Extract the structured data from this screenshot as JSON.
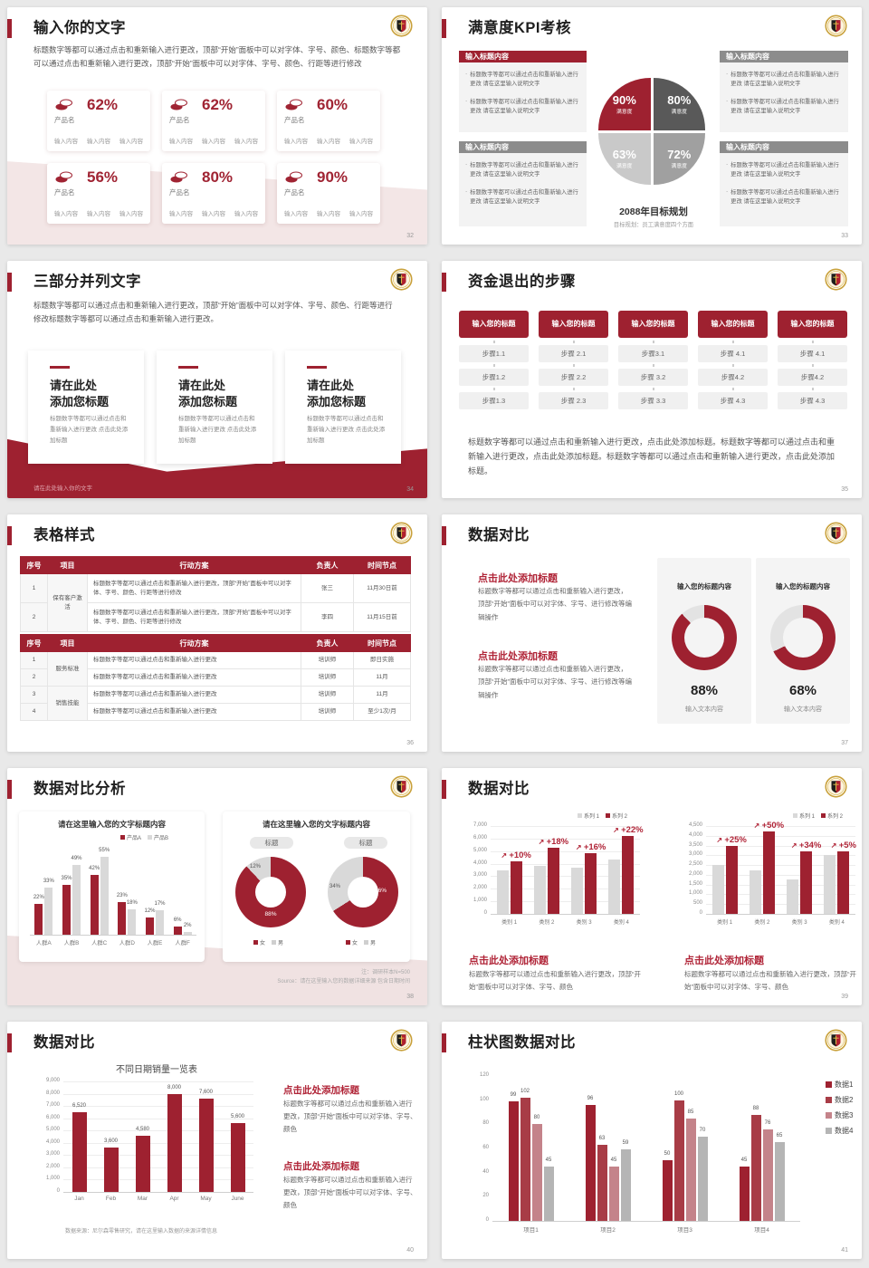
{
  "colors": {
    "red": "#9e2130",
    "red2": "#a83c46",
    "rose": "#c4838a",
    "heading_red": "#b02437",
    "gray_bar": "#d9d9d9",
    "gray_dark": "#595959",
    "gray_mid": "#a0a0a0",
    "gray_light": "#c9c9c9",
    "gray_header": "#8c8c8c",
    "legend_gray": "#b5b5b5"
  },
  "slides": [
    {
      "kind": "stats",
      "title": "输入你的文字",
      "page": "32",
      "body": "标题数字等都可以通过点击和重新输入进行更改，顶部“开始”面板中可以对字体、字号、颜色、标题数字等都可以通过点击和重新输入进行更改，顶部“开始”面板中可以对字体、字号、颜色、行距等进行修改",
      "cards": [
        {
          "pct": "62%",
          "product": "产品名",
          "items": [
            "输入内容",
            "输入内容",
            "输入内容"
          ]
        },
        {
          "pct": "62%",
          "product": "产品名",
          "items": [
            "输入内容",
            "输入内容",
            "输入内容"
          ]
        },
        {
          "pct": "60%",
          "product": "产品名",
          "items": [
            "输入内容",
            "输入内容",
            "输入内容"
          ]
        },
        {
          "pct": "56%",
          "product": "产品名",
          "items": [
            "输入内容",
            "输入内容",
            "输入内容"
          ]
        },
        {
          "pct": "80%",
          "product": "产品名",
          "items": [
            "输入内容",
            "输入内容",
            "输入内容"
          ]
        },
        {
          "pct": "90%",
          "product": "产品名",
          "items": [
            "输入内容",
            "输入内容",
            "输入内容"
          ]
        }
      ]
    },
    {
      "kind": "kpi",
      "title": "满意度KPI考核",
      "page": "33",
      "box_header": "输入标题内容",
      "bullet": "标题数字等都可以通过点击和重新输入进行更改 请在这里输入说明文字",
      "pie": [
        {
          "pct": "90",
          "label": "满意度"
        },
        {
          "pct": "80",
          "label": "满意度"
        },
        {
          "pct": "63",
          "label": "满意度"
        },
        {
          "pct": "72",
          "label": "满意度"
        }
      ],
      "center_title": "2088年目标规划",
      "center_sub": "目标规划：员工满意度四个方面"
    },
    {
      "kind": "three",
      "title": "三部分并列文字",
      "page": "34",
      "body": "标题数字等都可以通过点击和重新输入进行更改，顶部“开始”面板中可以对字体、字号、颜色、行距等进行修改标题数字等都可以通过点击和重新输入进行更改。",
      "card_title1": "请在此处",
      "card_title2": "添加您标题",
      "card_text": "标题数字等都可以通过点击和重新输入进行更改 点击此处添加标题",
      "footer": "请在此处输入你的文字"
    },
    {
      "kind": "steps",
      "title": "资金退出的步骤",
      "page": "35",
      "col_header": "输入您的标题",
      "cols": [
        [
          "步骤1.1",
          "步骤1.2",
          "步骤1.3"
        ],
        [
          "步骤 2.1",
          "步骤 2.2",
          "步骤 2.3"
        ],
        [
          "步骤3.1",
          "步骤 3.2",
          "步骤 3.3"
        ],
        [
          "步骤 4.1",
          "步骤4.2",
          "步骤 4.3"
        ],
        [
          "步骤 4.1",
          "步骤4.2",
          "步骤 4.3"
        ]
      ],
      "body": "标题数字等都可以通过点击和重新输入进行更改，点击此处添加标题。标题数字等都可以通过点击和重新输入进行更改，点击此处添加标题。标题数字等都可以通过点击和重新输入进行更改，点击此处添加标题。"
    },
    {
      "kind": "tables",
      "title": "表格样式",
      "page": "36",
      "headers": [
        "序号",
        "项目",
        "行动方案",
        "负责人",
        "时间节点"
      ],
      "t1": {
        "project": "保有客户激活",
        "plan": "标题数字等都可以通过点击和重新输入进行更改，顶部“开始”面板中可以对字体、字号、颜色、行距等进行修改",
        "rows": [
          [
            "1",
            "张三",
            "11月30日前"
          ],
          [
            "2",
            "李四",
            "11月15日前"
          ]
        ]
      },
      "t2": {
        "plan": "标题数字等都可以通过点击和重新输入进行更改",
        "groups": [
          {
            "project": "服务标准",
            "rows": [
              [
                "1",
                "培训师",
                "即日实施"
              ],
              [
                "2",
                "培训师",
                "11月"
              ]
            ]
          },
          {
            "project": "销售技能",
            "rows": [
              [
                "3",
                "培训师",
                "11月"
              ],
              [
                "4",
                "培训师",
                "至少1次/月"
              ]
            ]
          }
        ]
      }
    },
    {
      "kind": "donut2",
      "title": "数据对比",
      "page": "37",
      "blocks": [
        {
          "heading": "点击此处添加标题",
          "text": "标题数字等都可以通过点击和重新输入进行更改，顶部“开始”面板中可以对字体、字号、进行修改等编辑操作"
        },
        {
          "heading": "点击此处添加标题",
          "text": "标题数字等都可以通过点击和重新输入进行更改，顶部“开始”面板中可以对字体、字号、进行修改等编辑操作"
        }
      ],
      "cards": [
        {
          "header": "输入您的标题内容",
          "pct": 88,
          "caption": "输入文本内容"
        },
        {
          "header": "输入您的标题内容",
          "pct": 68,
          "caption": "输入文本内容"
        }
      ]
    },
    {
      "kind": "analysis",
      "title": "数据对比分析",
      "page": "38",
      "left": {
        "title": "请在这里输入您的文字标题内容",
        "categories": [
          "人群A",
          "人群B",
          "人群C",
          "人群D",
          "人群E",
          "人群F"
        ],
        "series": [
          {
            "name": "产品A",
            "values": [
              22,
              35,
              42,
              23,
              12,
              6
            ]
          },
          {
            "name": "产品B",
            "values": [
              33,
              49,
              55,
              18,
              17,
              2
            ]
          }
        ]
      },
      "right": {
        "title": "请在这里输入您的文字标题内容",
        "badge": "标题",
        "donuts": [
          {
            "gray": 12,
            "red": 88
          },
          {
            "gray": 34,
            "red": 66
          }
        ],
        "legend": [
          "女",
          "男"
        ]
      },
      "note1": "注：调研样本N=500",
      "note2": "Source：请在这里输入您的数据详细来源 包含日期时间"
    },
    {
      "kind": "barcmp",
      "title": "数据对比",
      "page": "39",
      "legend": [
        "系列 1",
        "系列 2"
      ],
      "charts": [
        {
          "ticks": [
            "7,000",
            "6,000",
            "5,000",
            "4,000",
            "3,000",
            "2,000",
            "1,000",
            "0"
          ],
          "max": 7000,
          "categories": [
            "类别 1",
            "类别 2",
            "类别 3",
            "类别 4"
          ],
          "gray": [
            3500,
            3800,
            3700,
            4300
          ],
          "red": [
            4200,
            5300,
            4800,
            6200
          ],
          "pct": [
            "+10%",
            "+18%",
            "+16%",
            "+22%"
          ]
        },
        {
          "ticks": [
            "4,500",
            "4,000",
            "3,500",
            "3,000",
            "2,500",
            "2,000",
            "1,500",
            "1,000",
            "500",
            "0"
          ],
          "max": 4500,
          "categories": [
            "类别 1",
            "类别 2",
            "类别 3",
            "类别 4"
          ],
          "gray": [
            2500,
            2250,
            1750,
            3000
          ],
          "red": [
            3500,
            4200,
            3200,
            3200
          ],
          "pct": [
            "+25%",
            "+50%",
            "+34%",
            "+5%"
          ]
        }
      ],
      "heading": "点击此处添加标题",
      "body": "标题数字等都可以通过点击和重新输入进行更改，顶部“开始”面板中可以对字体、字号、颜色"
    },
    {
      "kind": "sales",
      "title": "数据对比",
      "page": "40",
      "chart": {
        "title": "不同日期销量一览表",
        "ticks": [
          "9,000",
          "8,000",
          "7,000",
          "6,000",
          "5,000",
          "4,000",
          "3,000",
          "2,000",
          "1,000",
          "0"
        ],
        "max": 9000,
        "categories": [
          "Jan",
          "Feb",
          "Mar",
          "Apr",
          "May",
          "June"
        ],
        "values": [
          6520,
          3600,
          4580,
          8000,
          7600,
          5600
        ],
        "labels": [
          "6,520",
          "3,600",
          "4,580",
          "8,000",
          "7,600",
          "5,600"
        ]
      },
      "source": "数据来源：尼尔森零售研究，请在这里输入数据的来源详情信息",
      "blocks": [
        {
          "heading": "点击此处添加标题",
          "text": "标题数字等都可以通过点击和重新输入进行更改，顶部“开始”面板中可以对字体、字号、颜色"
        },
        {
          "heading": "点击此处添加标题",
          "text": "标题数字等都可以通过点击和重新输入进行更改，顶部“开始”面板中可以对字体、字号、颜色"
        }
      ]
    },
    {
      "kind": "columns",
      "title": "柱状图数据对比",
      "page": "41",
      "ticks": [
        "120",
        "100",
        "80",
        "60",
        "40",
        "20",
        "0"
      ],
      "max": 120,
      "categories": [
        "项目1",
        "项目2",
        "项目3",
        "项目4"
      ],
      "series": [
        {
          "name": "数据1",
          "values": [
            99,
            96,
            50,
            45
          ]
        },
        {
          "name": "数据2",
          "values": [
            102,
            63,
            100,
            88
          ]
        },
        {
          "name": "数据3",
          "values": [
            80,
            45,
            85,
            76
          ]
        },
        {
          "name": "数据4",
          "values": [
            45,
            59,
            70,
            65
          ]
        }
      ]
    }
  ],
  "chart_data": [
    {
      "type": "pie",
      "title": "满意度KPI考核",
      "labels": [
        "满意度",
        "满意度",
        "满意度",
        "满意度"
      ],
      "values": [
        90,
        80,
        63,
        72
      ],
      "note": "2088年目标规划 目标规划：员工满意度四个方面"
    },
    {
      "type": "pie",
      "title": "数据对比 donut 1",
      "values": [
        88,
        12
      ]
    },
    {
      "type": "pie",
      "title": "数据对比 donut 2",
      "values": [
        68,
        32
      ]
    },
    {
      "type": "bar",
      "title": "请在这里输入您的文字标题内容",
      "categories": [
        "人群A",
        "人群B",
        "人群C",
        "人群D",
        "人群E",
        "人群F"
      ],
      "series": [
        {
          "name": "产品A",
          "values": [
            22,
            35,
            42,
            23,
            12,
            6
          ]
        },
        {
          "name": "产品B",
          "values": [
            33,
            49,
            55,
            18,
            17,
            2
          ]
        }
      ],
      "ylabel": "%",
      "legend_position": "top-right"
    },
    {
      "type": "pie",
      "title": "女/男 donut 1",
      "labels": [
        "女",
        "男"
      ],
      "values": [
        88,
        12
      ]
    },
    {
      "type": "pie",
      "title": "女/男 donut 2",
      "labels": [
        "女",
        "男"
      ],
      "values": [
        66,
        34
      ]
    },
    {
      "type": "bar",
      "title": "数据对比 左",
      "categories": [
        "类别 1",
        "类别 2",
        "类别 3",
        "类别 4"
      ],
      "series": [
        {
          "name": "系列 1",
          "values": [
            3500,
            3800,
            3700,
            4300
          ]
        },
        {
          "name": "系列 2",
          "values": [
            4200,
            5300,
            4800,
            6200
          ]
        }
      ],
      "annotations": [
        "+10%",
        "+18%",
        "+16%",
        "+22%"
      ],
      "ylim": [
        0,
        7000
      ]
    },
    {
      "type": "bar",
      "title": "数据对比 右",
      "categories": [
        "类别 1",
        "类别 2",
        "类别 3",
        "类别 4"
      ],
      "series": [
        {
          "name": "系列 1",
          "values": [
            2500,
            2250,
            1750,
            3000
          ]
        },
        {
          "name": "系列 2",
          "values": [
            3500,
            4200,
            3200,
            3200
          ]
        }
      ],
      "annotations": [
        "+25%",
        "+50%",
        "+34%",
        "+5%"
      ],
      "ylim": [
        0,
        4500
      ]
    },
    {
      "type": "bar",
      "title": "不同日期销量一览表",
      "categories": [
        "Jan",
        "Feb",
        "Mar",
        "Apr",
        "May",
        "June"
      ],
      "values": [
        6520,
        3600,
        4580,
        8000,
        7600,
        5600
      ],
      "ylim": [
        0,
        9000
      ]
    },
    {
      "type": "bar",
      "title": "柱状图数据对比",
      "categories": [
        "项目1",
        "项目2",
        "项目3",
        "项目4"
      ],
      "series": [
        {
          "name": "数据1",
          "values": [
            99,
            96,
            50,
            45
          ]
        },
        {
          "name": "数据2",
          "values": [
            102,
            63,
            100,
            88
          ]
        },
        {
          "name": "数据3",
          "values": [
            80,
            45,
            85,
            76
          ]
        },
        {
          "name": "数据4",
          "values": [
            45,
            59,
            70,
            65
          ]
        }
      ],
      "ylim": [
        0,
        120
      ],
      "legend_position": "right"
    }
  ]
}
